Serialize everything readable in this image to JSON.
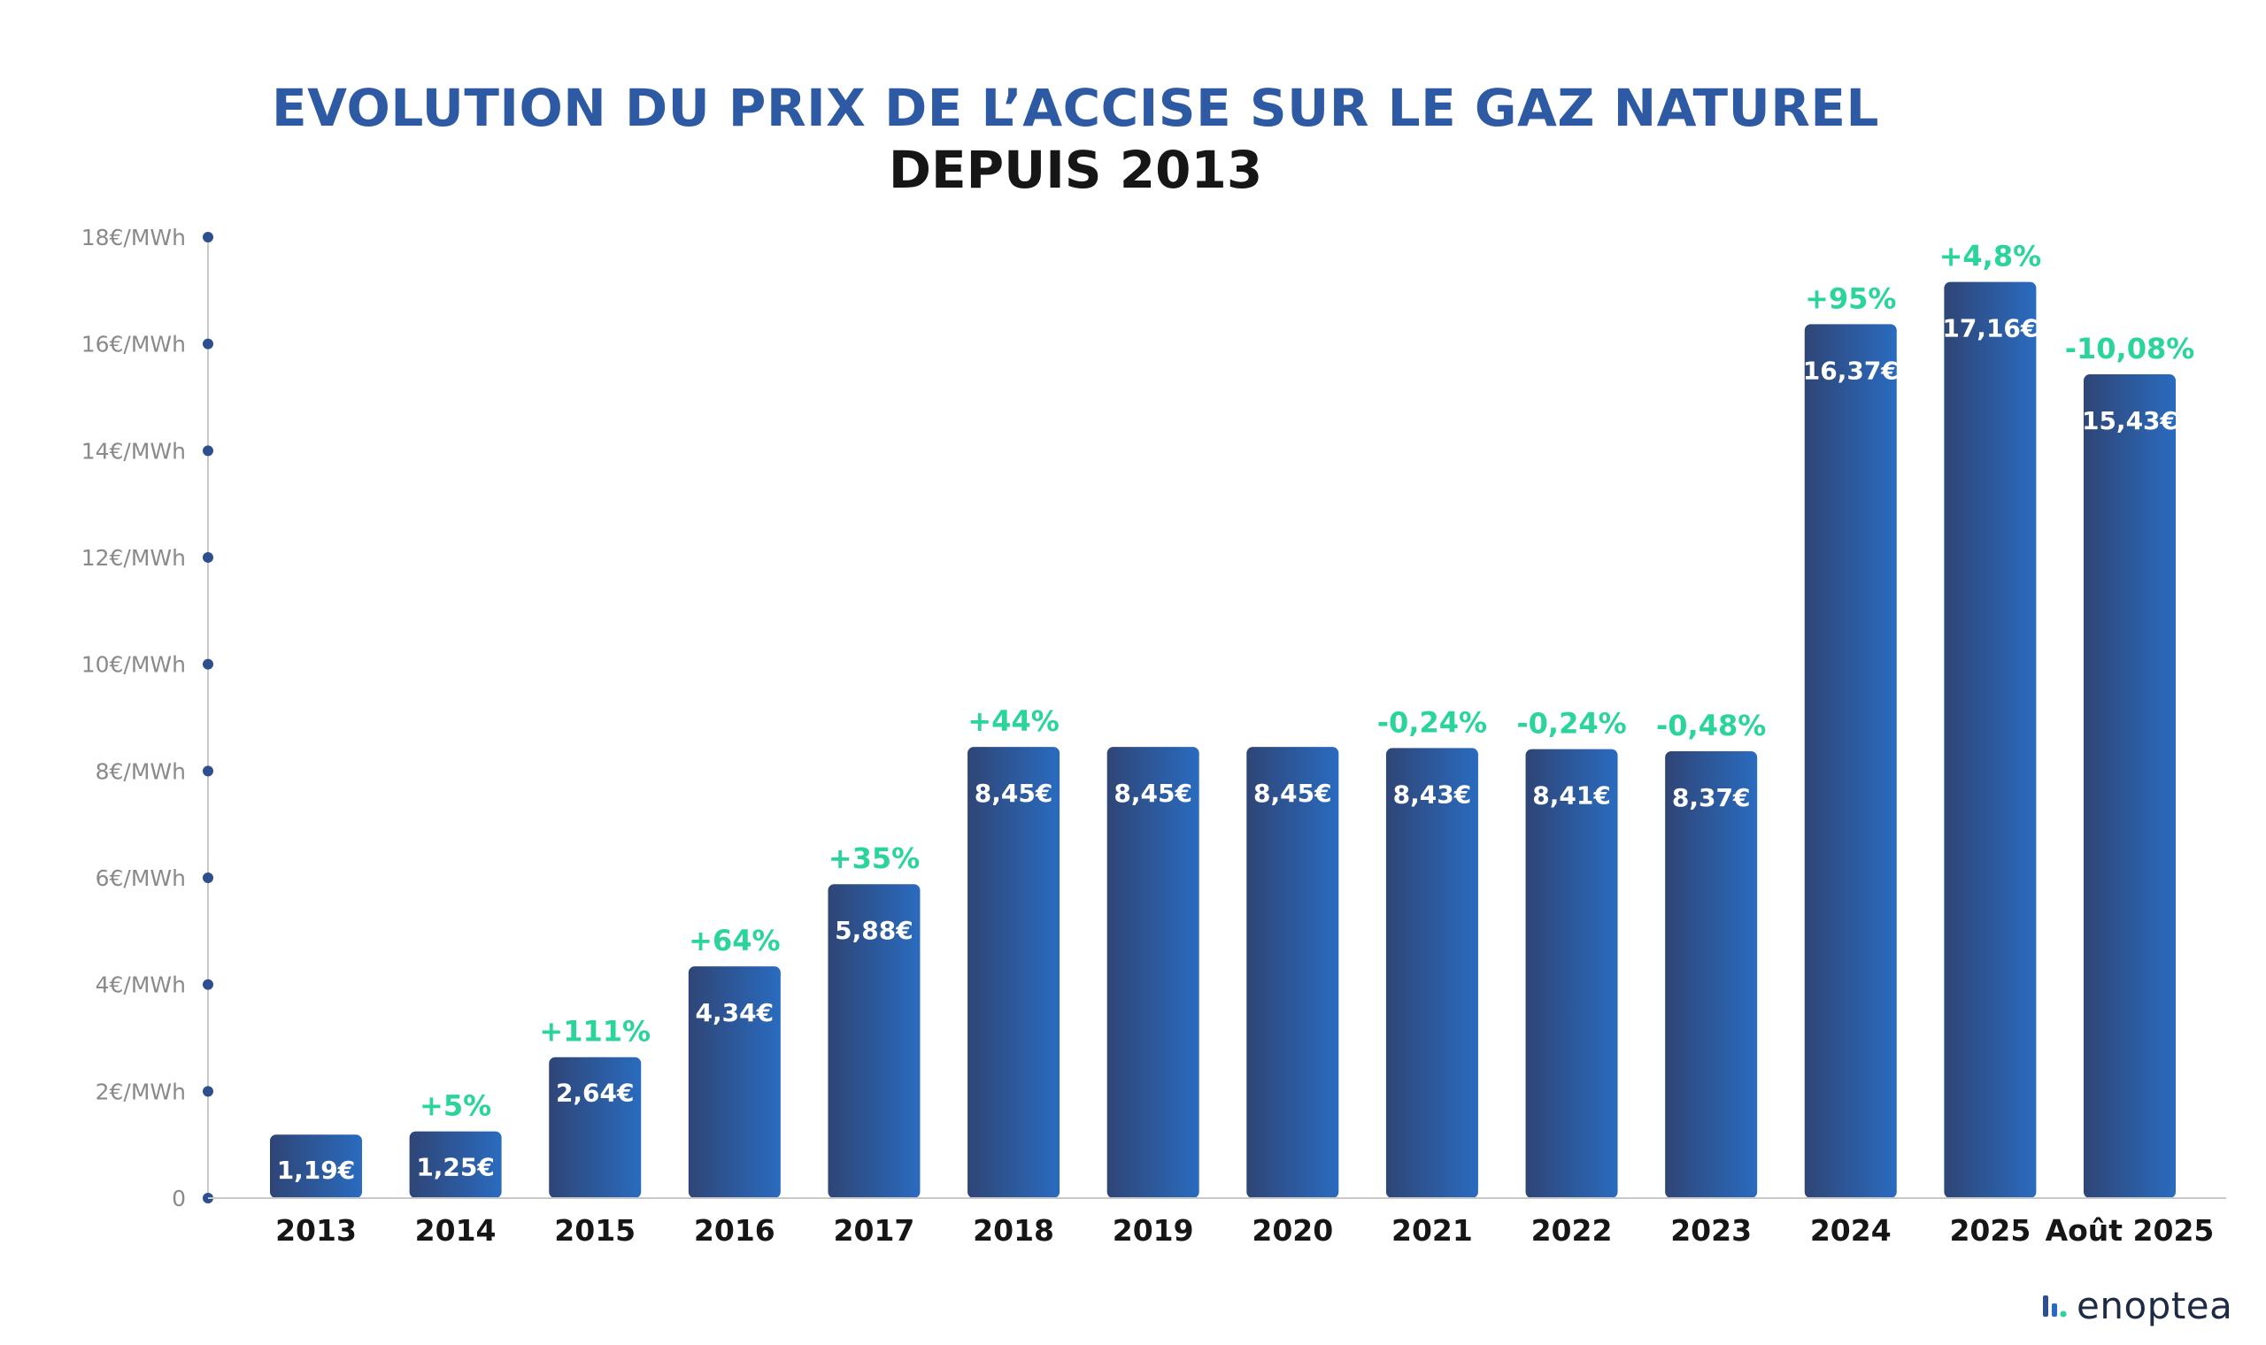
{
  "title_line1": "EVOLUTION DU PRIX  DE L’ACCISE SUR LE GAZ NATUREL",
  "title_line2": "DEPUIS 2013",
  "brand": "enoptea",
  "colors": {
    "title_blue": "#2e5aa3",
    "bar_dark": "#2f4576",
    "bar_light": "#2a6bbf",
    "change_green": "#2bd49a",
    "axis_dot": "#2d4f8e",
    "tick_text": "#8a8a8a"
  },
  "chart_data": {
    "type": "bar",
    "categories": [
      "2013",
      "2014",
      "2015",
      "2016",
      "2017",
      "2018",
      "2019",
      "2020",
      "2021",
      "2022",
      "2023",
      "2024",
      "2025",
      "Août 2025"
    ],
    "values": [
      1.19,
      1.25,
      2.64,
      4.34,
      5.88,
      8.45,
      8.45,
      8.45,
      8.43,
      8.41,
      8.37,
      16.37,
      17.16,
      15.43
    ],
    "value_labels": [
      "1,19€",
      "1,25€",
      "2,64€",
      "4,34€",
      "5,88€",
      "8,45€",
      "8,45€",
      "8,45€",
      "8,43€",
      "8,41€",
      "8,37€",
      "16,37€",
      "17,16€",
      "15,43€"
    ],
    "change_labels": [
      "",
      "+5%",
      "+111%",
      "+64%",
      "+35%",
      "+44%",
      "",
      "",
      "-0,24%",
      "-0,24%",
      "-0,48%",
      "+95%",
      "+4,8%",
      "-10,08%"
    ],
    "yticks": [
      0,
      2,
      4,
      6,
      8,
      10,
      12,
      14,
      16,
      18
    ],
    "ytick_labels": [
      "0",
      "2€/MWh",
      "4€/MWh",
      "6€/MWh",
      "8€/MWh",
      "10€/MWh",
      "12€/MWh",
      "14€/MWh",
      "16€/MWh",
      "18€/MWh"
    ],
    "ylim": [
      0,
      18
    ],
    "title": "EVOLUTION DU PRIX  DE L’ACCISE SUR LE GAZ NATUREL DEPUIS 2013",
    "xlabel": "",
    "ylabel": "",
    "grid": false
  }
}
